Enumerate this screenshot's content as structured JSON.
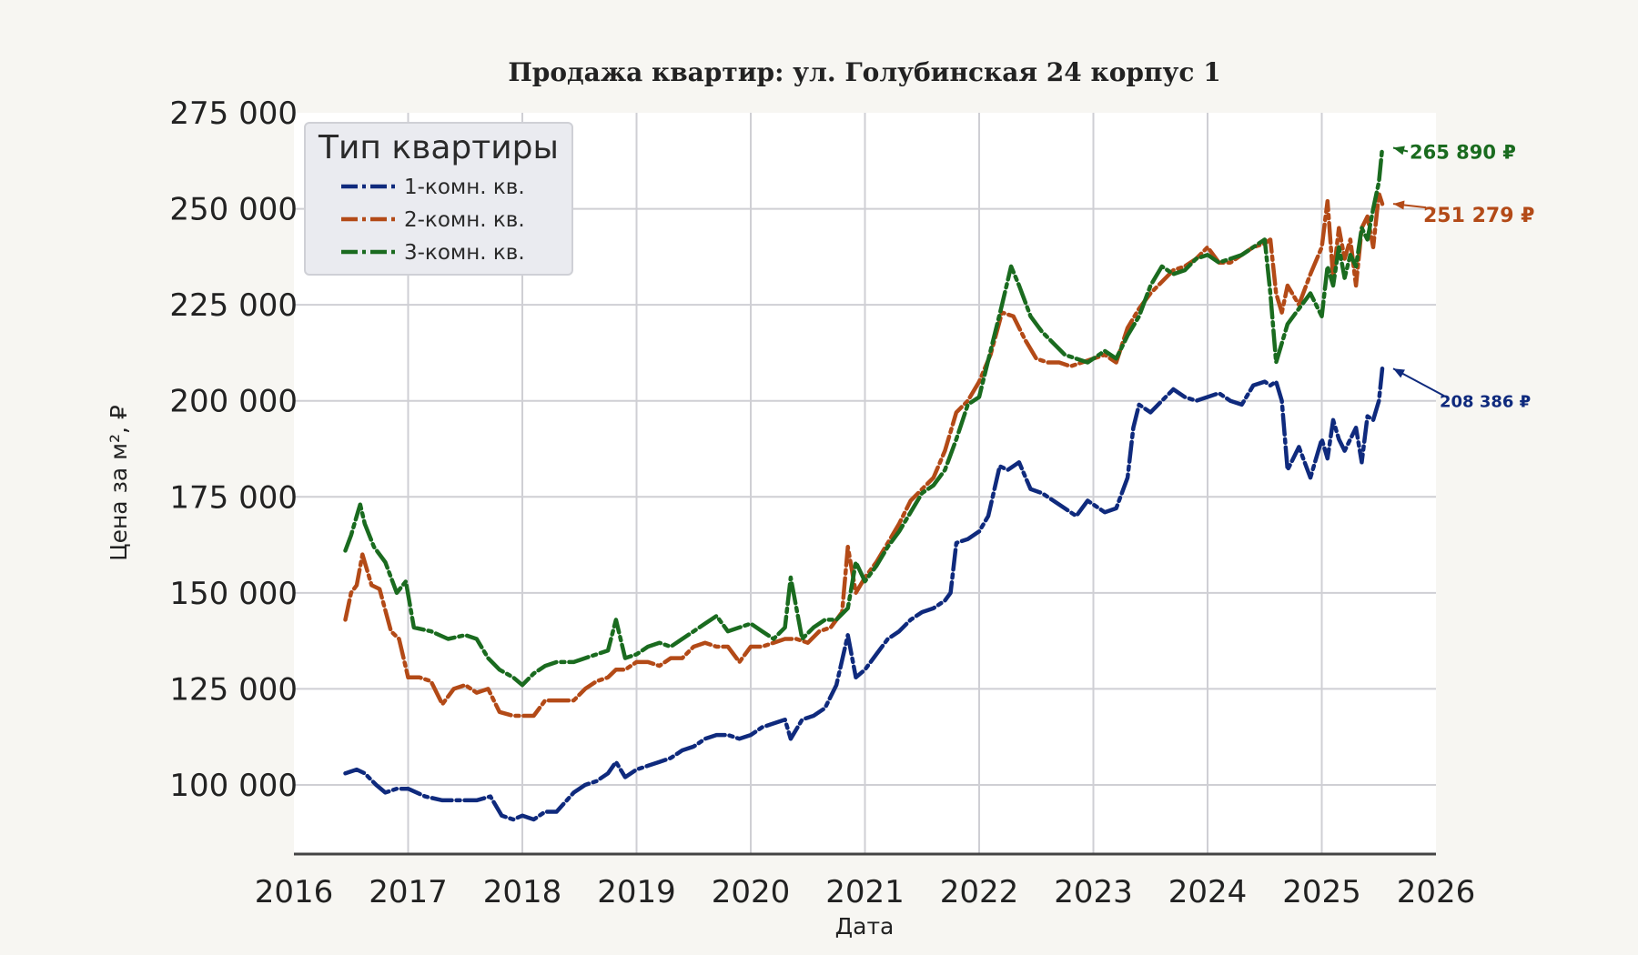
{
  "chart_data": {
    "type": "line",
    "title": "Продажа квартир: ул. Голубинская 24 корпус 1",
    "xlabel": "Дата",
    "ylabel": "Цена за м², ₽",
    "xlim": [
      2016,
      2026
    ],
    "ylim": [
      82000,
      275000
    ],
    "x_ticks": [
      "2016",
      "2017",
      "2018",
      "2019",
      "2020",
      "2021",
      "2022",
      "2023",
      "2024",
      "2025",
      "2026"
    ],
    "y_ticks": [
      "100 000",
      "125 000",
      "150 000",
      "175 000",
      "200 000",
      "225 000",
      "250 000",
      "275 000"
    ],
    "grid": true,
    "legend": {
      "title": "Тип квартиры",
      "placement": "top-left"
    },
    "series": [
      {
        "name": "1-комн. кв.",
        "color": "#0f2a7d",
        "x": [
          2016.45,
          2016.55,
          2016.62,
          2016.72,
          2016.8,
          2016.9,
          2017.0,
          2017.15,
          2017.3,
          2017.45,
          2017.6,
          2017.72,
          2017.82,
          2017.92,
          2018.0,
          2018.1,
          2018.2,
          2018.3,
          2018.45,
          2018.55,
          2018.65,
          2018.75,
          2018.82,
          2018.9,
          2019.0,
          2019.1,
          2019.2,
          2019.3,
          2019.4,
          2019.5,
          2019.6,
          2019.7,
          2019.8,
          2019.9,
          2020.0,
          2020.1,
          2020.2,
          2020.3,
          2020.35,
          2020.45,
          2020.55,
          2020.65,
          2020.75,
          2020.85,
          2020.92,
          2021.0,
          2021.1,
          2021.2,
          2021.3,
          2021.4,
          2021.5,
          2021.6,
          2021.7,
          2021.75,
          2021.8,
          2021.9,
          2022.0,
          2022.08,
          2022.18,
          2022.25,
          2022.35,
          2022.45,
          2022.55,
          2022.65,
          2022.75,
          2022.85,
          2022.95,
          2023.0,
          2023.1,
          2023.2,
          2023.3,
          2023.35,
          2023.4,
          2023.5,
          2023.6,
          2023.7,
          2023.8,
          2023.9,
          2024.0,
          2024.1,
          2024.2,
          2024.3,
          2024.4,
          2024.5,
          2024.55,
          2024.6,
          2024.65,
          2024.7,
          2024.8,
          2024.9,
          2025.0,
          2025.05,
          2025.1,
          2025.15,
          2025.2,
          2025.25,
          2025.3,
          2025.35,
          2025.4,
          2025.45,
          2025.5,
          2025.53
        ],
        "values": [
          103000,
          104000,
          103000,
          100000,
          98000,
          99000,
          99000,
          97000,
          96000,
          96000,
          96000,
          97000,
          92000,
          91000,
          92000,
          91000,
          93000,
          93000,
          98000,
          100000,
          101000,
          103000,
          106000,
          102000,
          104000,
          105000,
          106000,
          107000,
          109000,
          110000,
          112000,
          113000,
          113000,
          112000,
          113000,
          115000,
          116000,
          117000,
          112000,
          117000,
          118000,
          120000,
          126000,
          139000,
          128000,
          130000,
          134000,
          138000,
          140000,
          143000,
          145000,
          146000,
          148000,
          150000,
          163000,
          164000,
          166000,
          170000,
          183000,
          182000,
          184000,
          177000,
          176000,
          174000,
          172000,
          170000,
          174000,
          173000,
          171000,
          172000,
          180000,
          193000,
          199000,
          197000,
          200000,
          203000,
          201000,
          200000,
          201000,
          202000,
          200000,
          199000,
          204000,
          205000,
          204000,
          205000,
          200000,
          182000,
          188000,
          180000,
          190000,
          185000,
          195000,
          190000,
          187000,
          190000,
          193000,
          184000,
          196000,
          195000,
          200000,
          208386
        ]
      },
      {
        "name": "2-комн. кв.",
        "color": "#b34a17",
        "x": [
          2016.45,
          2016.5,
          2016.55,
          2016.6,
          2016.68,
          2016.75,
          2016.85,
          2016.92,
          2017.0,
          2017.1,
          2017.2,
          2017.3,
          2017.4,
          2017.5,
          2017.6,
          2017.7,
          2017.8,
          2017.92,
          2018.0,
          2018.1,
          2018.2,
          2018.3,
          2018.45,
          2018.55,
          2018.65,
          2018.75,
          2018.82,
          2018.9,
          2019.0,
          2019.1,
          2019.2,
          2019.3,
          2019.4,
          2019.5,
          2019.6,
          2019.7,
          2019.8,
          2019.9,
          2020.0,
          2020.1,
          2020.2,
          2020.3,
          2020.4,
          2020.5,
          2020.6,
          2020.7,
          2020.8,
          2020.85,
          2020.92,
          2021.0,
          2021.1,
          2021.2,
          2021.3,
          2021.4,
          2021.5,
          2021.6,
          2021.7,
          2021.8,
          2021.9,
          2022.0,
          2022.1,
          2022.2,
          2022.3,
          2022.4,
          2022.5,
          2022.6,
          2022.7,
          2022.8,
          2022.9,
          2023.0,
          2023.1,
          2023.2,
          2023.3,
          2023.4,
          2023.5,
          2023.6,
          2023.7,
          2023.8,
          2023.9,
          2024.0,
          2024.1,
          2024.2,
          2024.3,
          2024.4,
          2024.5,
          2024.55,
          2024.6,
          2024.65,
          2024.7,
          2024.8,
          2024.9,
          2025.0,
          2025.05,
          2025.1,
          2025.15,
          2025.2,
          2025.25,
          2025.3,
          2025.35,
          2025.4,
          2025.45,
          2025.5,
          2025.53
        ],
        "values": [
          143000,
          150000,
          152000,
          160000,
          152000,
          151000,
          140000,
          138000,
          128000,
          128000,
          127000,
          121000,
          125000,
          126000,
          124000,
          125000,
          119000,
          118000,
          118000,
          118000,
          122000,
          122000,
          122000,
          125000,
          127000,
          128000,
          130000,
          130000,
          132000,
          132000,
          131000,
          133000,
          133000,
          136000,
          137000,
          136000,
          136000,
          132000,
          136000,
          136000,
          137000,
          138000,
          138000,
          137000,
          140000,
          141000,
          145000,
          162000,
          150000,
          154000,
          158000,
          163000,
          168000,
          174000,
          177000,
          180000,
          187000,
          197000,
          200000,
          205000,
          212000,
          223000,
          222000,
          216000,
          211000,
          210000,
          210000,
          209000,
          210000,
          211000,
          212000,
          210000,
          219000,
          224000,
          228000,
          231000,
          234000,
          235000,
          237000,
          240000,
          236000,
          236000,
          238000,
          240000,
          241000,
          242000,
          228000,
          223000,
          230000,
          225000,
          233000,
          240000,
          252000,
          232000,
          245000,
          237000,
          242000,
          230000,
          245000,
          248000,
          240000,
          254000,
          251279
        ]
      },
      {
        "name": "3-комн. кв.",
        "color": "#1a6b1f",
        "x": [
          2016.45,
          2016.5,
          2016.55,
          2016.58,
          2016.62,
          2016.7,
          2016.8,
          2016.9,
          2016.98,
          2017.05,
          2017.2,
          2017.35,
          2017.5,
          2017.6,
          2017.7,
          2017.8,
          2017.92,
          2018.0,
          2018.1,
          2018.2,
          2018.3,
          2018.45,
          2018.55,
          2018.65,
          2018.75,
          2018.82,
          2018.9,
          2019.0,
          2019.1,
          2019.2,
          2019.3,
          2019.4,
          2019.5,
          2019.6,
          2019.7,
          2019.8,
          2019.9,
          2020.0,
          2020.1,
          2020.2,
          2020.3,
          2020.35,
          2020.45,
          2020.55,
          2020.65,
          2020.75,
          2020.85,
          2020.92,
          2021.0,
          2021.1,
          2021.2,
          2021.3,
          2021.4,
          2021.5,
          2021.6,
          2021.7,
          2021.8,
          2021.9,
          2022.0,
          2022.1,
          2022.2,
          2022.28,
          2022.35,
          2022.45,
          2022.55,
          2022.65,
          2022.75,
          2022.85,
          2022.95,
          2023.0,
          2023.1,
          2023.2,
          2023.3,
          2023.4,
          2023.5,
          2023.6,
          2023.7,
          2023.8,
          2023.9,
          2024.0,
          2024.1,
          2024.2,
          2024.3,
          2024.4,
          2024.5,
          2024.55,
          2024.6,
          2024.65,
          2024.7,
          2024.8,
          2024.9,
          2025.0,
          2025.05,
          2025.1,
          2025.15,
          2025.2,
          2025.25,
          2025.3,
          2025.35,
          2025.4,
          2025.45,
          2025.5,
          2025.53
        ],
        "values": [
          161000,
          165000,
          170000,
          173000,
          168000,
          162000,
          158000,
          150000,
          153000,
          141000,
          140000,
          138000,
          139000,
          138000,
          133000,
          130000,
          128000,
          126000,
          129000,
          131000,
          132000,
          132000,
          133000,
          134000,
          135000,
          143000,
          133000,
          134000,
          136000,
          137000,
          136000,
          138000,
          140000,
          142000,
          144000,
          140000,
          141000,
          142000,
          140000,
          138000,
          141000,
          154000,
          138000,
          141000,
          143000,
          143000,
          146000,
          158000,
          153000,
          157000,
          162000,
          166000,
          171000,
          176000,
          178000,
          182000,
          190000,
          199000,
          201000,
          213000,
          225000,
          235000,
          230000,
          222000,
          218000,
          215000,
          212000,
          211000,
          210000,
          211000,
          213000,
          211000,
          217000,
          222000,
          230000,
          235000,
          233000,
          234000,
          237000,
          238000,
          236000,
          237000,
          238000,
          240000,
          242000,
          228000,
          210000,
          215000,
          220000,
          224000,
          228000,
          222000,
          235000,
          230000,
          240000,
          232000,
          238000,
          235000,
          245000,
          242000,
          250000,
          257000,
          265890
        ]
      }
    ],
    "annotations": [
      {
        "series": "3-комн. кв.",
        "text": "265 890 ₽",
        "color": "#1a6b1f"
      },
      {
        "series": "2-комн. кв.",
        "text": "251 279 ₽",
        "color": "#b34a17"
      },
      {
        "series": "1-комн. кв.",
        "text": "208 386 ₽",
        "color": "#0f2a7d"
      }
    ]
  }
}
